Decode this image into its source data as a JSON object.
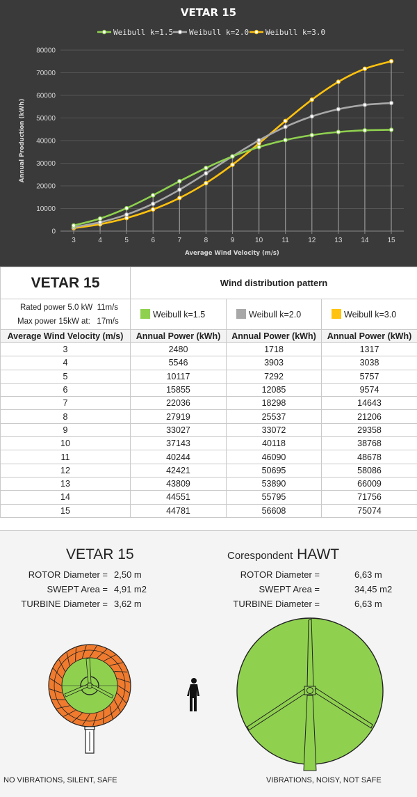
{
  "chart_data": {
    "type": "line",
    "title": "VETAR 15",
    "xlabel": "Average Wind Velocity (m/s)",
    "ylabel": "Annual Production (kWh)",
    "x": [
      3,
      4,
      5,
      6,
      7,
      8,
      9,
      10,
      11,
      12,
      13,
      14,
      15
    ],
    "xlim": [
      3,
      15
    ],
    "ylim": [
      0,
      80000
    ],
    "yticks": [
      0,
      10000,
      20000,
      30000,
      40000,
      50000,
      60000,
      70000,
      80000
    ],
    "grid": true,
    "legend_position": "top-center",
    "series": [
      {
        "name": "Weibull k=1.5",
        "color": "#8fd14f",
        "values": [
          2480,
          5546,
          10117,
          15855,
          22036,
          27919,
          33027,
          37143,
          40244,
          42421,
          43809,
          44551,
          44781
        ]
      },
      {
        "name": "Weibull k=2.0",
        "color": "#a8a8a8",
        "values": [
          1718,
          3903,
          7292,
          12085,
          18298,
          25537,
          33072,
          40118,
          46090,
          50695,
          53890,
          55795,
          56608
        ]
      },
      {
        "name": "Weibull k=3.0",
        "color": "#ffc20e",
        "values": [
          1317,
          3038,
          5757,
          9574,
          14643,
          21206,
          29358,
          38768,
          48678,
          58086,
          66009,
          71756,
          75074
        ]
      }
    ]
  },
  "table": {
    "model": "VETAR 15",
    "pattern_title": "Wind distribution pattern",
    "rated_label": "Rated power 5.0 kW",
    "rated_value": "11m/s",
    "max_label": "Max power 15kW at:",
    "max_value": "17m/s",
    "legend": [
      {
        "label": "Weibull k=1.5",
        "color": "#8fd14f"
      },
      {
        "label": "Weibull k=2.0",
        "color": "#a8a8a8"
      },
      {
        "label": "Weibull k=3.0",
        "color": "#ffc20e"
      }
    ],
    "headers": [
      "Average Wind Velocity (m/s)",
      "Annual Power (kWh)",
      "Annual Power (kWh)",
      "Annual Power (kWh)"
    ],
    "rows": [
      [
        "3",
        "2480",
        "1718",
        "1317"
      ],
      [
        "4",
        "5546",
        "3903",
        "3038"
      ],
      [
        "5",
        "10117",
        "7292",
        "5757"
      ],
      [
        "6",
        "15855",
        "12085",
        "9574"
      ],
      [
        "7",
        "22036",
        "18298",
        "14643"
      ],
      [
        "8",
        "27919",
        "25537",
        "21206"
      ],
      [
        "9",
        "33027",
        "33072",
        "29358"
      ],
      [
        "10",
        "37143",
        "40118",
        "38768"
      ],
      [
        "11",
        "40244",
        "46090",
        "48678"
      ],
      [
        "12",
        "42421",
        "50695",
        "58086"
      ],
      [
        "13",
        "43809",
        "53890",
        "66009"
      ],
      [
        "14",
        "44551",
        "55795",
        "71756"
      ],
      [
        "15",
        "44781",
        "56608",
        "75074"
      ]
    ]
  },
  "comparison": {
    "left": {
      "title": "VETAR 15",
      "specs": [
        {
          "label": "ROTOR Diameter =",
          "value": "2,50 m"
        },
        {
          "label": "SWEPT Area =",
          "value": "4,91 m2"
        },
        {
          "label": "TURBINE Diameter =",
          "value": "3,62 m"
        }
      ],
      "note": "NO VIBRATIONS, SILENT, SAFE"
    },
    "right": {
      "title_prefix": "Corespondent",
      "title": "HAWT",
      "specs": [
        {
          "label": "ROTOR Diameter =",
          "value": "6,63 m"
        },
        {
          "label": "SWEPT Area =",
          "value": "34,45 m2"
        },
        {
          "label": "TURBINE Diameter =",
          "value": "6,63 m"
        }
      ],
      "note": "VIBRATIONS, NOISY, NOT SAFE"
    },
    "colors": {
      "rotor": "#8fd14f",
      "shroud": "#f07b2e",
      "outline": "#222222"
    }
  }
}
